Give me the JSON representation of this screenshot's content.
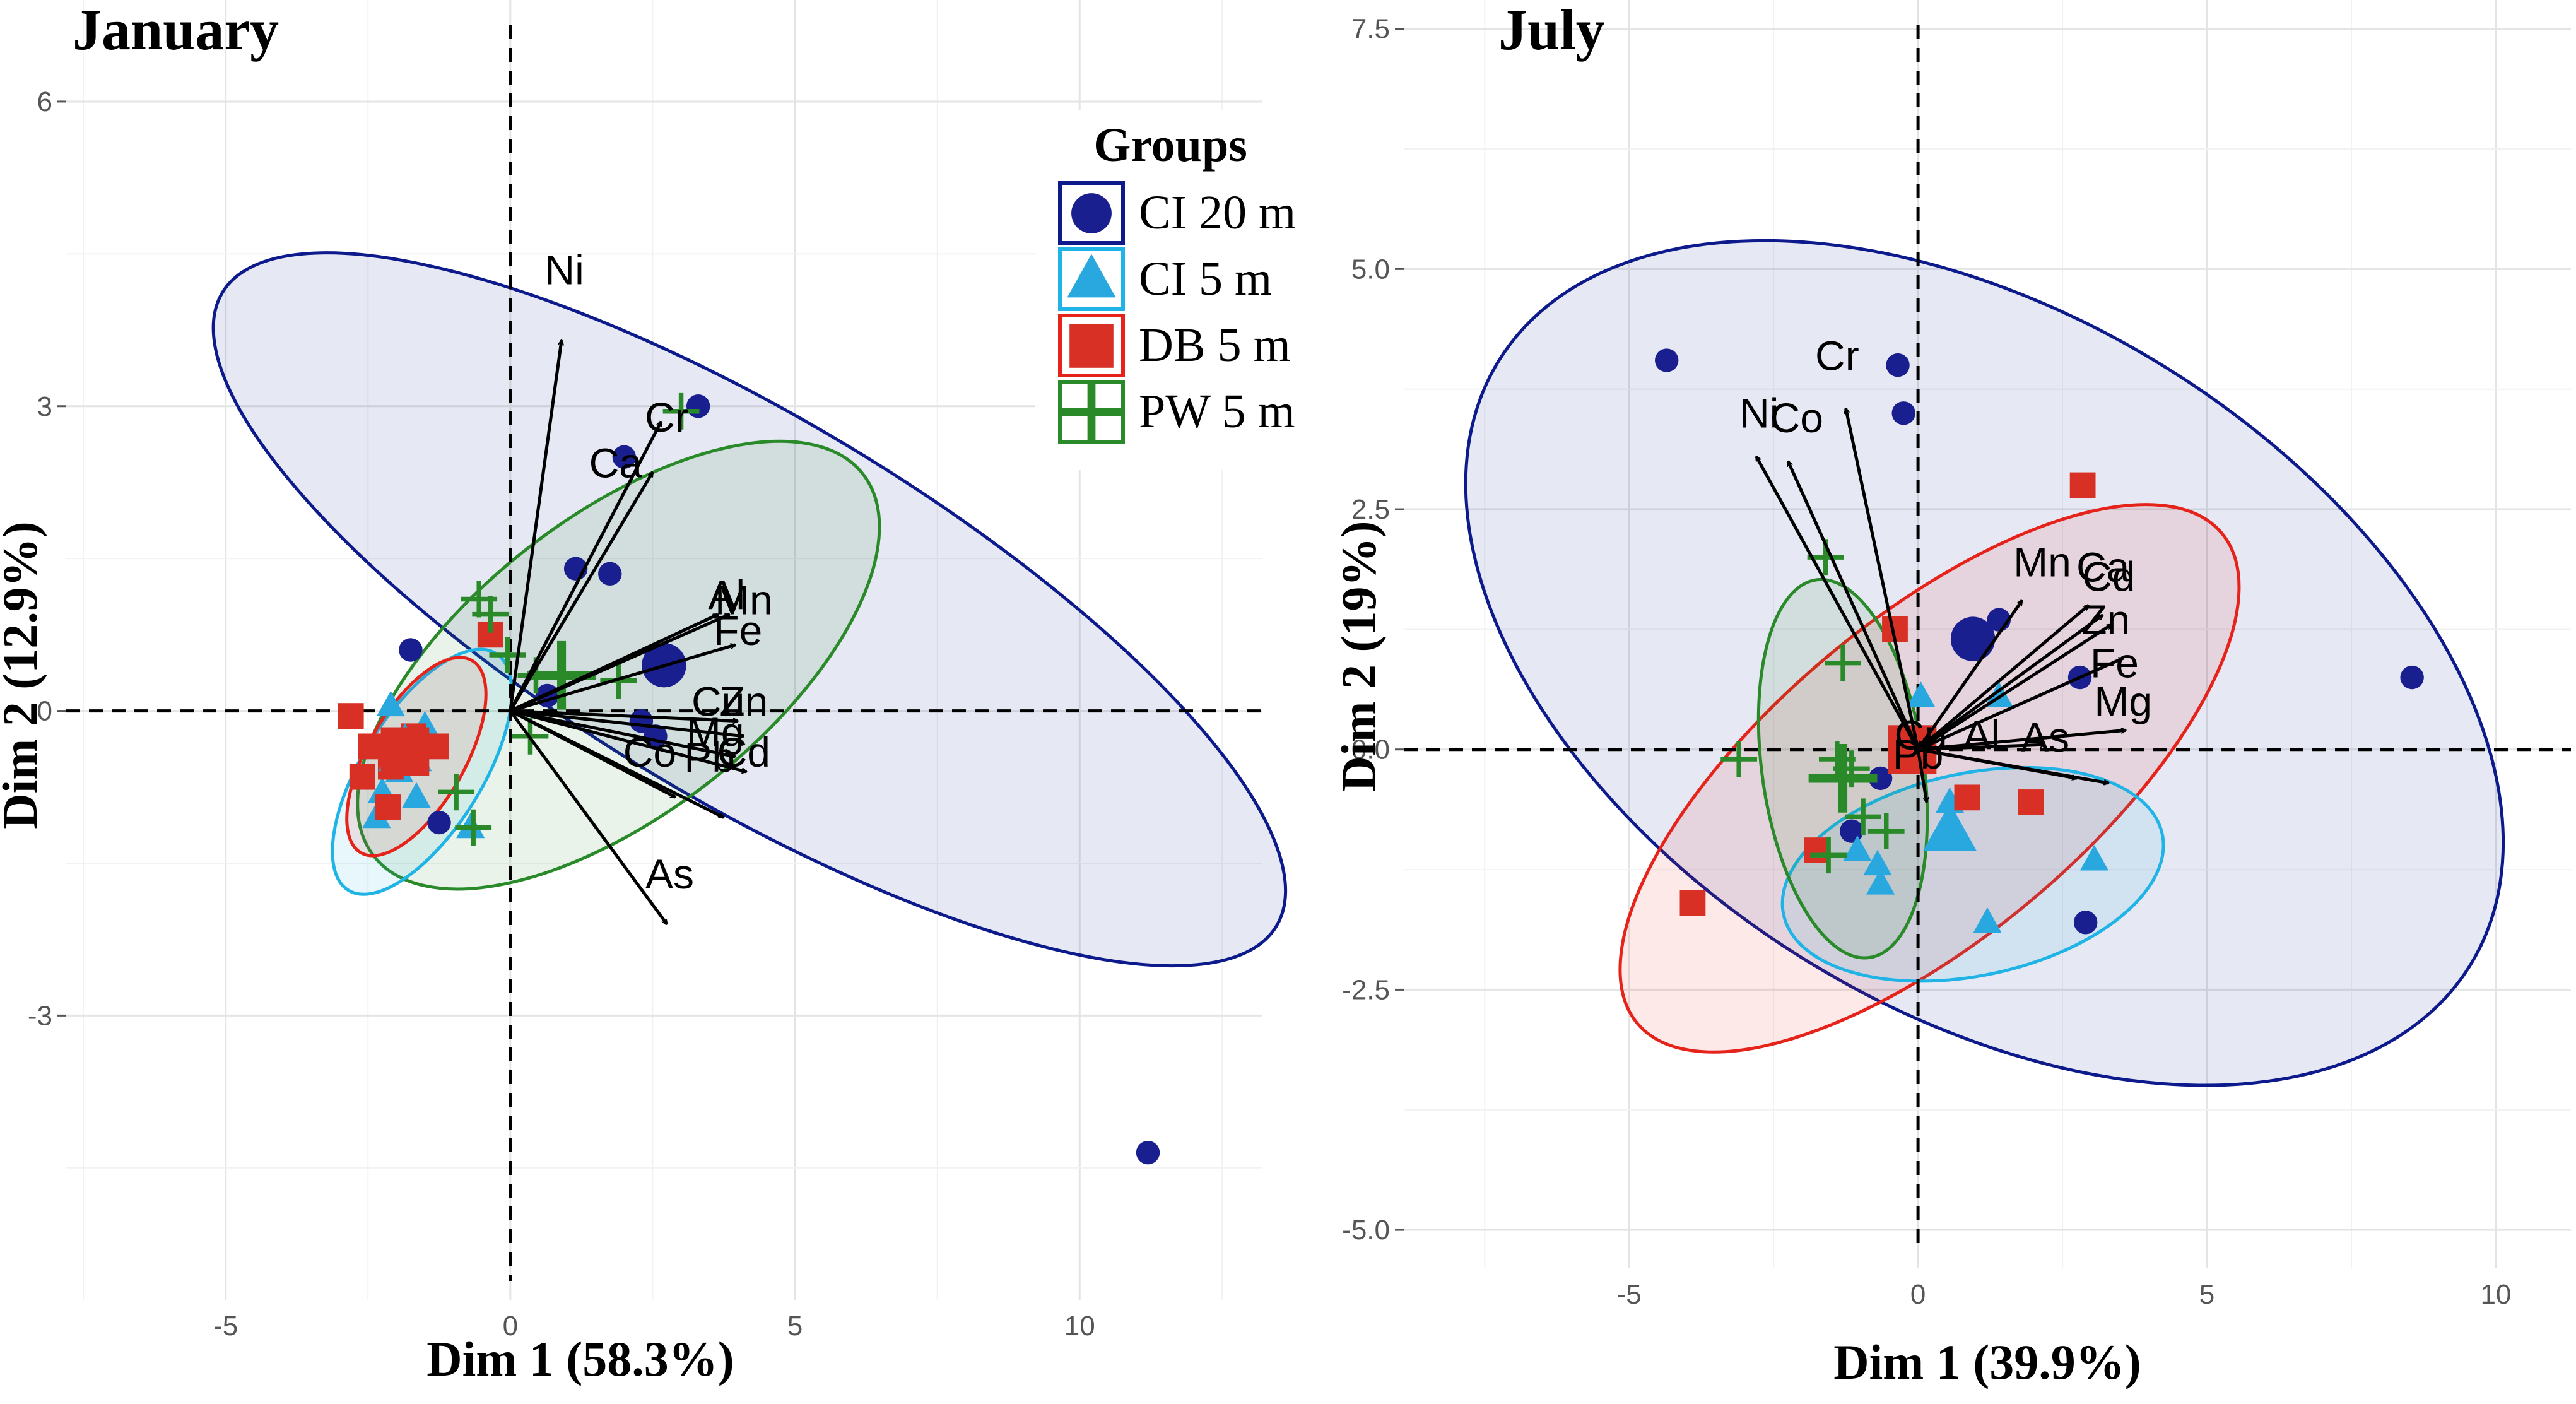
{
  "legend": {
    "title": "Groups",
    "items": [
      {
        "key": "CI20",
        "label": "CI 20 m",
        "color": "#0d1a8c",
        "fill": "#1a1f8f",
        "shape": "circle"
      },
      {
        "key": "CI5",
        "label": "CI 5 m",
        "color": "#1fb3e6",
        "fill": "#29a8e0",
        "shape": "triangle"
      },
      {
        "key": "DB5",
        "label": "DB 5 m",
        "color": "#e6231a",
        "fill": "#d93026",
        "shape": "square"
      },
      {
        "key": "PW5",
        "label": "PW 5 m",
        "color": "#2a8a2a",
        "fill": "#3c963c",
        "shape": "plus"
      }
    ]
  },
  "chart_data": [
    {
      "type": "scatter",
      "title": "January",
      "xlabel": "Dim 1 (58.3%)",
      "ylabel": "Dim 2 (12.9%)",
      "xlim": [
        -7.8,
        13.2
      ],
      "ylim": [
        -5.8,
        7.0
      ],
      "xticks": [
        -5,
        0,
        5,
        10
      ],
      "yticks": [
        -3,
        0,
        3,
        6
      ],
      "xtick_labels": [
        "-5",
        "0",
        "5",
        "10"
      ],
      "ytick_labels": [
        "-3",
        "0",
        "3",
        "6"
      ],
      "grid": true,
      "ellipses": [
        {
          "group": "CI20",
          "cx": 4.2,
          "cy": 1.0,
          "rx": 10.8,
          "ry": 3.35,
          "angle": -31
        },
        {
          "group": "PW5",
          "cx": 1.9,
          "cy": 0.45,
          "rx": 5.45,
          "ry": 2.6,
          "angle": 38
        },
        {
          "group": "CI5",
          "cx": -1.55,
          "cy": -0.6,
          "rx": 2.45,
          "ry": 1.05,
          "angle": 58
        },
        {
          "group": "DB5",
          "cx": -1.65,
          "cy": -0.45,
          "rx": 1.95,
          "ry": 0.85,
          "angle": 60
        }
      ],
      "points": [
        {
          "group": "CI20",
          "x": 11.2,
          "y": -4.35
        },
        {
          "group": "CI20",
          "x": 3.3,
          "y": 3.0
        },
        {
          "group": "CI20",
          "x": 2.0,
          "y": 2.5
        },
        {
          "group": "CI20",
          "x": 1.15,
          "y": 1.4
        },
        {
          "group": "CI20",
          "x": 1.75,
          "y": 1.35
        },
        {
          "group": "CI20",
          "x": 0.65,
          "y": 0.15
        },
        {
          "group": "CI20",
          "x": 2.3,
          "y": -0.1
        },
        {
          "group": "CI20",
          "x": -1.75,
          "y": 0.6
        },
        {
          "group": "CI20",
          "x": 2.55,
          "y": -0.25
        },
        {
          "group": "CI20",
          "x": -1.25,
          "y": -1.1
        },
        {
          "group": "CI5",
          "x": -2.1,
          "y": 0.05
        },
        {
          "group": "CI5",
          "x": -1.7,
          "y": -0.35
        },
        {
          "group": "CI5",
          "x": -2.25,
          "y": -0.8
        },
        {
          "group": "CI5",
          "x": -1.65,
          "y": -0.85
        },
        {
          "group": "CI5",
          "x": -2.35,
          "y": -1.05
        },
        {
          "group": "CI5",
          "x": -1.95,
          "y": -0.6
        },
        {
          "group": "CI5",
          "x": -1.5,
          "y": -0.15
        },
        {
          "group": "CI5",
          "x": -0.7,
          "y": -1.15
        },
        {
          "group": "DB5",
          "x": -2.8,
          "y": -0.05
        },
        {
          "group": "DB5",
          "x": -2.45,
          "y": -0.35
        },
        {
          "group": "DB5",
          "x": -2.6,
          "y": -0.65
        },
        {
          "group": "DB5",
          "x": -2.15,
          "y": -0.95
        },
        {
          "group": "DB5",
          "x": -1.7,
          "y": -0.25
        },
        {
          "group": "DB5",
          "x": -1.3,
          "y": -0.35
        },
        {
          "group": "DB5",
          "x": -0.35,
          "y": 0.75
        },
        {
          "group": "DB5",
          "x": -2.1,
          "y": -0.55
        },
        {
          "group": "PW5",
          "x": 3.0,
          "y": 2.95
        },
        {
          "group": "PW5",
          "x": -0.55,
          "y": 1.1
        },
        {
          "group": "PW5",
          "x": -0.35,
          "y": 0.95
        },
        {
          "group": "PW5",
          "x": 0.45,
          "y": 0.35
        },
        {
          "group": "PW5",
          "x": 1.9,
          "y": 0.3
        },
        {
          "group": "PW5",
          "x": -0.05,
          "y": 0.55
        },
        {
          "group": "PW5",
          "x": -0.95,
          "y": -0.8
        },
        {
          "group": "PW5",
          "x": -0.65,
          "y": -1.15
        },
        {
          "group": "PW5",
          "x": 0.35,
          "y": -0.25
        }
      ],
      "centroids": [
        {
          "group": "CI20",
          "x": 2.7,
          "y": 0.45
        },
        {
          "group": "PW5",
          "x": 0.9,
          "y": 0.35
        },
        {
          "group": "CI5",
          "x": -1.85,
          "y": -0.4
        },
        {
          "group": "DB5",
          "x": -1.85,
          "y": -0.4
        }
      ],
      "vectors": [
        {
          "name": "Ni",
          "x": 0.9,
          "y": 3.65,
          "lx": 0.95,
          "ly": 4.2
        },
        {
          "name": "Cr",
          "x": 2.65,
          "y": 2.85,
          "lx": 2.75,
          "ly": 2.75
        },
        {
          "name": "Ca",
          "x": 2.5,
          "y": 2.35,
          "lx": 1.85,
          "ly": 2.3
        },
        {
          "name": "Al",
          "x": 3.65,
          "y": 0.95,
          "lx": 3.8,
          "ly": 1.0
        },
        {
          "name": "Mn",
          "x": 3.85,
          "y": 0.95,
          "lx": 4.1,
          "ly": 0.95
        },
        {
          "name": "Fe",
          "x": 3.95,
          "y": 0.65,
          "lx": 4.0,
          "ly": 0.65
        },
        {
          "name": "Cu",
          "x": 4.0,
          "y": -0.1,
          "lx": 3.65,
          "ly": -0.05
        },
        {
          "name": "Zn",
          "x": 4.1,
          "y": -0.25,
          "lx": 4.1,
          "ly": -0.05
        },
        {
          "name": "Mg",
          "x": 3.95,
          "y": -0.45,
          "lx": 3.6,
          "ly": -0.35
        },
        {
          "name": "Cd",
          "x": 4.15,
          "y": -0.6,
          "lx": 4.1,
          "ly": -0.55
        },
        {
          "name": "Co",
          "x": 2.9,
          "y": -0.85,
          "lx": 2.45,
          "ly": -0.55
        },
        {
          "name": "Pb",
          "x": 3.75,
          "y": -1.05,
          "lx": 3.5,
          "ly": -0.6
        },
        {
          "name": "As",
          "x": 2.75,
          "y": -2.1,
          "lx": 2.8,
          "ly": -1.75
        }
      ]
    },
    {
      "type": "scatter",
      "title": "July",
      "xlabel": "Dim 1 (39.9%)",
      "ylabel": "Dim 2 (19%)",
      "xlim": [
        -8.9,
        11.3
      ],
      "ylim": [
        -5.4,
        7.8
      ],
      "xticks": [
        -5,
        0,
        5,
        10
      ],
      "yticks": [
        -5.0,
        -2.5,
        0.0,
        2.5,
        5.0,
        7.5
      ],
      "xtick_labels": [
        "-5",
        "0",
        "5",
        "10"
      ],
      "ytick_labels": [
        "-5.0",
        "-2.5",
        "0.0",
        "2.5",
        "5.0",
        "7.5"
      ],
      "grid": true,
      "ellipses": [
        {
          "group": "CI20",
          "cx": 1.15,
          "cy": 0.9,
          "rx": 9.9,
          "ry": 6.0,
          "angle": -32
        },
        {
          "group": "DB5",
          "cx": 0.2,
          "cy": -0.3,
          "rx": 6.6,
          "ry": 2.75,
          "angle": 40
        },
        {
          "group": "CI5",
          "cx": 0.95,
          "cy": -1.3,
          "rx": 3.35,
          "ry": 1.75,
          "angle": 12
        },
        {
          "group": "PW5",
          "cx": -1.3,
          "cy": -0.2,
          "rx": 3.3,
          "ry": 1.4,
          "angle": -82
        }
      ],
      "points": [
        {
          "group": "CI20",
          "x": -4.35,
          "y": 4.05
        },
        {
          "group": "CI20",
          "x": -0.35,
          "y": 4.0
        },
        {
          "group": "CI20",
          "x": -0.25,
          "y": 3.5
        },
        {
          "group": "CI20",
          "x": 8.55,
          "y": 0.75
        },
        {
          "group": "CI20",
          "x": 1.4,
          "y": 1.35
        },
        {
          "group": "CI20",
          "x": 2.8,
          "y": 0.75
        },
        {
          "group": "CI20",
          "x": -0.65,
          "y": -0.3
        },
        {
          "group": "CI20",
          "x": -1.15,
          "y": -0.85
        },
        {
          "group": "CI20",
          "x": 2.9,
          "y": -1.8
        },
        {
          "group": "CI5",
          "x": 0.05,
          "y": 0.55
        },
        {
          "group": "CI5",
          "x": 1.4,
          "y": 0.55
        },
        {
          "group": "CI5",
          "x": 0.55,
          "y": -0.55
        },
        {
          "group": "CI5",
          "x": -0.7,
          "y": -1.2
        },
        {
          "group": "CI5",
          "x": -1.05,
          "y": -1.05
        },
        {
          "group": "CI5",
          "x": -0.65,
          "y": -1.4
        },
        {
          "group": "CI5",
          "x": 1.2,
          "y": -1.8
        },
        {
          "group": "CI5",
          "x": 3.05,
          "y": -1.15
        },
        {
          "group": "DB5",
          "x": -0.4,
          "y": 1.25
        },
        {
          "group": "DB5",
          "x": 2.85,
          "y": 2.75
        },
        {
          "group": "DB5",
          "x": 1.95,
          "y": -0.55
        },
        {
          "group": "DB5",
          "x": 0.85,
          "y": -0.5
        },
        {
          "group": "DB5",
          "x": -1.75,
          "y": -1.05
        },
        {
          "group": "DB5",
          "x": -3.9,
          "y": -1.6
        },
        {
          "group": "PW5",
          "x": -1.6,
          "y": 2.0
        },
        {
          "group": "PW5",
          "x": -1.3,
          "y": 0.9
        },
        {
          "group": "PW5",
          "x": -1.4,
          "y": -0.1
        },
        {
          "group": "PW5",
          "x": -3.1,
          "y": -0.1
        },
        {
          "group": "PW5",
          "x": -1.15,
          "y": -0.2
        },
        {
          "group": "PW5",
          "x": -0.95,
          "y": -0.7
        },
        {
          "group": "PW5",
          "x": -0.55,
          "y": -0.85
        },
        {
          "group": "PW5",
          "x": -1.55,
          "y": -1.1
        }
      ],
      "centroids": [
        {
          "group": "CI20",
          "x": 0.95,
          "y": 1.15
        },
        {
          "group": "DB5",
          "x": -0.1,
          "y": 0.0
        },
        {
          "group": "CI5",
          "x": 0.55,
          "y": -0.85
        },
        {
          "group": "PW5",
          "x": -1.3,
          "y": -0.3
        }
      ],
      "vectors": [
        {
          "name": "Cr",
          "x": -1.25,
          "y": 3.55,
          "lx": -1.4,
          "ly": 3.95
        },
        {
          "name": "Ni",
          "x": -2.8,
          "y": 3.05,
          "lx": -2.75,
          "ly": 3.35
        },
        {
          "name": "Co",
          "x": -2.25,
          "y": 3.0,
          "lx": -2.1,
          "ly": 3.3
        },
        {
          "name": "Mn",
          "x": 1.8,
          "y": 1.55,
          "lx": 2.15,
          "ly": 1.8
        },
        {
          "name": "Ca",
          "x": 2.95,
          "y": 1.5,
          "lx": 3.2,
          "ly": 1.75
        },
        {
          "name": "Cd",
          "x": 3.2,
          "y": 1.4,
          "lx": 3.3,
          "ly": 1.65
        },
        {
          "name": "Zn",
          "x": 3.35,
          "y": 1.3,
          "lx": 3.25,
          "ly": 1.2
        },
        {
          "name": "Fe",
          "x": 3.55,
          "y": 0.95,
          "lx": 3.4,
          "ly": 0.75
        },
        {
          "name": "Mg",
          "x": 3.6,
          "y": 0.2,
          "lx": 3.55,
          "ly": 0.35
        },
        {
          "name": "Al",
          "x": 2.2,
          "y": 0.05,
          "lx": 1.1,
          "ly": 0.0
        },
        {
          "name": "As",
          "x": 3.3,
          "y": -0.35,
          "lx": 2.2,
          "ly": -0.02
        },
        {
          "name": "Pb",
          "x": 2.75,
          "y": -0.3,
          "lx": 0.0,
          "ly": -0.2
        },
        {
          "name": "Cu",
          "x": 0.15,
          "y": -0.55,
          "lx": 0.05,
          "ly": 0.0
        }
      ]
    }
  ]
}
